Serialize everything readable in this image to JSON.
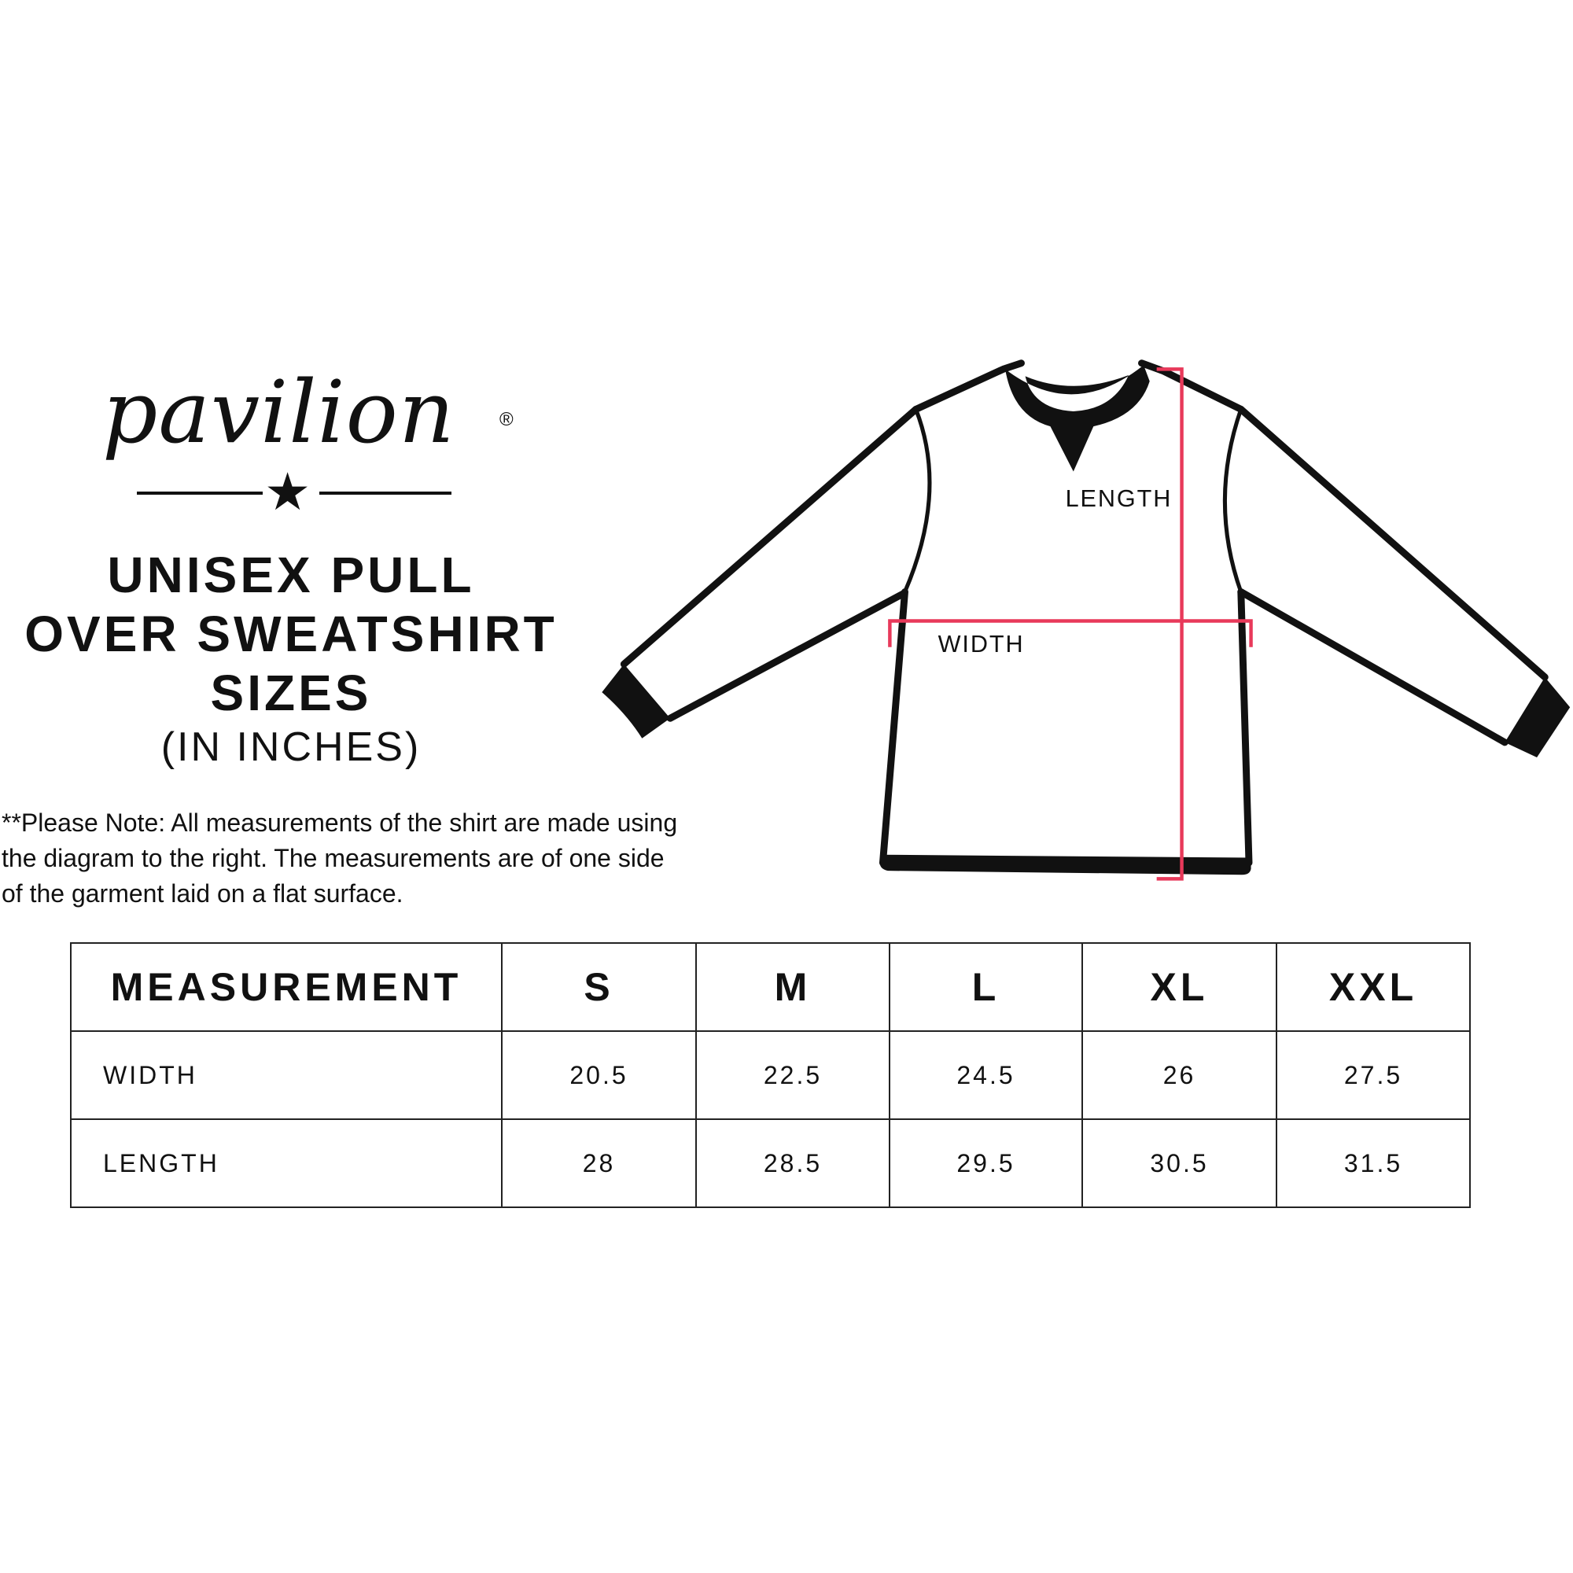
{
  "brand": {
    "logo_text": "pavilion",
    "registered": "®"
  },
  "title": {
    "line1": "UNISEX PULL",
    "line2": "OVER SWEATSHIRT",
    "line3": "SIZES",
    "units": "(IN INCHES)"
  },
  "note": {
    "line1": "**Please Note:  All measurements of the shirt are made using",
    "line2": "the diagram to the right.  The measurements are of one side",
    "line3": "of the garment laid on a flat surface."
  },
  "diagram": {
    "length_label": "LENGTH",
    "width_label": "WIDTH",
    "measure_color": "#e8395a"
  },
  "table": {
    "headers": [
      "MEASUREMENT",
      "S",
      "M",
      "L",
      "XL",
      "XXL"
    ],
    "rows": [
      {
        "label": "WIDTH",
        "values": [
          "20.5",
          "22.5",
          "24.5",
          "26",
          "27.5"
        ]
      },
      {
        "label": "LENGTH",
        "values": [
          "28",
          "28.5",
          "29.5",
          "30.5",
          "31.5"
        ]
      }
    ]
  }
}
